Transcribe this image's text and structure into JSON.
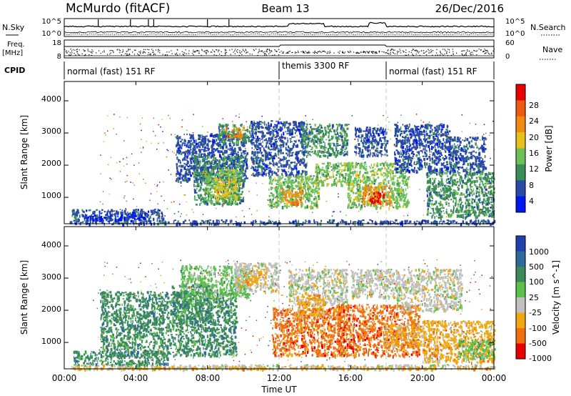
{
  "header": {
    "title": "McMurdo (fitACF)",
    "beam": "Beam 13",
    "date": "26/Dec/2016"
  },
  "colors": {
    "power": [
      "#0018f0",
      "#2a4aa8",
      "#3a8f56",
      "#6cc05a",
      "#e4c21a",
      "#f08a10",
      "#f05a10",
      "#e80000"
    ],
    "velocity": [
      "#2040b0",
      "#2e6a9c",
      "#3a8a5c",
      "#5cc04a",
      "#c0c0c0",
      "#f0a810",
      "#f07010",
      "#e80000"
    ],
    "axis": "#000000",
    "trace": "#000000",
    "guide": "#c8c8c8"
  },
  "chart_data": [
    {
      "type": "line",
      "name": "n-sky-panel",
      "left_label": "N.Sky",
      "right_label": "N.Search",
      "left_ticks": [
        "10^5",
        "10^0"
      ],
      "right_ticks": [
        "10^5",
        "10^0"
      ]
    },
    {
      "type": "line",
      "name": "freq-nave-panel",
      "left_label_top": "Freq.",
      "left_label_bottom": "[MHz]",
      "right_label": "Nave",
      "left_ticks": [
        "18",
        "8"
      ],
      "right_ticks": [
        "60",
        "0"
      ]
    },
    {
      "type": "table",
      "name": "cpid-strip",
      "label": "CPID",
      "segments": [
        {
          "start_hour": 0,
          "end_hour": 12,
          "text": "normal (fast) 151 RF"
        },
        {
          "start_hour": 12,
          "end_hour": 18,
          "text": "themis 3300 RF"
        },
        {
          "start_hour": 18,
          "end_hour": 24,
          "text": "normal (fast) 151 RF"
        }
      ]
    },
    {
      "type": "heatmap",
      "name": "power-panel",
      "ylabel": "Slant Range [km]",
      "ylim": [
        180,
        4600
      ],
      "yticks": [
        "1000",
        "2000",
        "3000",
        "4000"
      ],
      "colorbar_label": "Power [dB]",
      "colorbar_ticks": [
        "4",
        "8",
        "12",
        "16",
        "20",
        "24",
        "28"
      ]
    },
    {
      "type": "heatmap",
      "name": "velocity-panel",
      "ylabel": "Slant Range [km]",
      "ylim": [
        180,
        4600
      ],
      "yticks": [
        "1000",
        "2000",
        "3000",
        "4000"
      ],
      "colorbar_label": "Velocity [m s^-1]",
      "colorbar_ticks": [
        "1000",
        "500",
        "100",
        "25",
        "-25",
        "-100",
        "-500",
        "-1000"
      ]
    }
  ],
  "time_axis": {
    "xlabel": "Time UT",
    "xlim_hours": [
      0,
      24
    ],
    "ticks": [
      "00:00",
      "04:00",
      "08:00",
      "12:00",
      "16:00",
      "20:00",
      "00:00"
    ]
  },
  "regions": {
    "power": [
      {
        "t0": 0.4,
        "t1": 5.6,
        "r0": 300,
        "r1": 650,
        "c": 1
      },
      {
        "t0": 0.3,
        "t1": 24.0,
        "r0": 190,
        "r1": 320,
        "c": 1
      },
      {
        "t0": 1.0,
        "t1": 4.5,
        "r0": 330,
        "r1": 480,
        "c": 0
      },
      {
        "t0": 6.2,
        "t1": 10.2,
        "r0": 1500,
        "r1": 3000,
        "c": 1
      },
      {
        "t0": 7.2,
        "t1": 10.0,
        "r0": 800,
        "r1": 2300,
        "c": 2
      },
      {
        "t0": 7.8,
        "t1": 9.8,
        "r0": 900,
        "r1": 1900,
        "c": 3
      },
      {
        "t0": 8.3,
        "t1": 9.6,
        "r0": 1000,
        "r1": 1600,
        "c": 4
      },
      {
        "t0": 8.6,
        "t1": 10.4,
        "r0": 2700,
        "r1": 3300,
        "c": 2
      },
      {
        "t0": 9.0,
        "t1": 10.0,
        "r0": 2900,
        "r1": 3200,
        "c": 5
      },
      {
        "t0": 10.4,
        "t1": 13.5,
        "r0": 1700,
        "r1": 3400,
        "c": 1
      },
      {
        "t0": 11.4,
        "t1": 14.2,
        "r0": 700,
        "r1": 1700,
        "c": 3
      },
      {
        "t0": 12.1,
        "t1": 13.3,
        "r0": 800,
        "r1": 1300,
        "c": 5
      },
      {
        "t0": 13.2,
        "t1": 15.8,
        "r0": 2300,
        "r1": 3300,
        "c": 2
      },
      {
        "t0": 14.0,
        "t1": 16.0,
        "r0": 1400,
        "r1": 2100,
        "c": 3
      },
      {
        "t0": 15.8,
        "t1": 19.2,
        "r0": 700,
        "r1": 2100,
        "c": 3
      },
      {
        "t0": 16.6,
        "t1": 18.2,
        "r0": 800,
        "r1": 1400,
        "c": 5
      },
      {
        "t0": 17.0,
        "t1": 17.8,
        "r0": 850,
        "r1": 1200,
        "c": 7
      },
      {
        "t0": 16.2,
        "t1": 18.0,
        "r0": 2300,
        "r1": 3200,
        "c": 1
      },
      {
        "t0": 18.4,
        "t1": 21.5,
        "r0": 1800,
        "r1": 3300,
        "c": 1
      },
      {
        "t0": 20.2,
        "t1": 24.0,
        "r0": 400,
        "r1": 1800,
        "c": 2
      },
      {
        "t0": 21.5,
        "t1": 23.5,
        "r0": 1800,
        "r1": 2900,
        "c": 1
      }
    ],
    "velocity": [
      {
        "t0": 0.3,
        "t1": 24.0,
        "r0": 190,
        "r1": 330,
        "c": 4
      },
      {
        "t0": 0.3,
        "t1": 24.0,
        "r0": 190,
        "r1": 260,
        "c": 5
      },
      {
        "t0": 0.5,
        "t1": 5.8,
        "r0": 330,
        "r1": 750,
        "c": 2
      },
      {
        "t0": 2.0,
        "t1": 9.6,
        "r0": 600,
        "r1": 2600,
        "c": 2
      },
      {
        "t0": 6.0,
        "t1": 8.2,
        "r0": 1600,
        "r1": 2800,
        "c": 2
      },
      {
        "t0": 6.5,
        "t1": 10.3,
        "r0": 2400,
        "r1": 3400,
        "c": 3
      },
      {
        "t0": 9.5,
        "t1": 12.0,
        "r0": 2600,
        "r1": 3500,
        "c": 4
      },
      {
        "t0": 10.0,
        "t1": 11.2,
        "r0": 2800,
        "r1": 3300,
        "c": 5
      },
      {
        "t0": 11.6,
        "t1": 15.6,
        "r0": 600,
        "r1": 2100,
        "c": 6
      },
      {
        "t0": 12.5,
        "t1": 15.8,
        "r0": 2200,
        "r1": 3300,
        "c": 4
      },
      {
        "t0": 13.0,
        "t1": 14.5,
        "r0": 1800,
        "r1": 2500,
        "c": 5
      },
      {
        "t0": 15.2,
        "t1": 19.8,
        "r0": 600,
        "r1": 2200,
        "c": 6
      },
      {
        "t0": 16.0,
        "t1": 18.5,
        "r0": 2400,
        "r1": 3300,
        "c": 4
      },
      {
        "t0": 17.8,
        "t1": 20.0,
        "r0": 900,
        "r1": 1600,
        "c": 5
      },
      {
        "t0": 18.5,
        "t1": 22.2,
        "r0": 2000,
        "r1": 3300,
        "c": 4
      },
      {
        "t0": 20.0,
        "t1": 24.0,
        "r0": 400,
        "r1": 1700,
        "c": 5
      },
      {
        "t0": 22.0,
        "t1": 24.0,
        "r0": 500,
        "r1": 1100,
        "c": 3
      }
    ],
    "noise_cells": 900
  }
}
